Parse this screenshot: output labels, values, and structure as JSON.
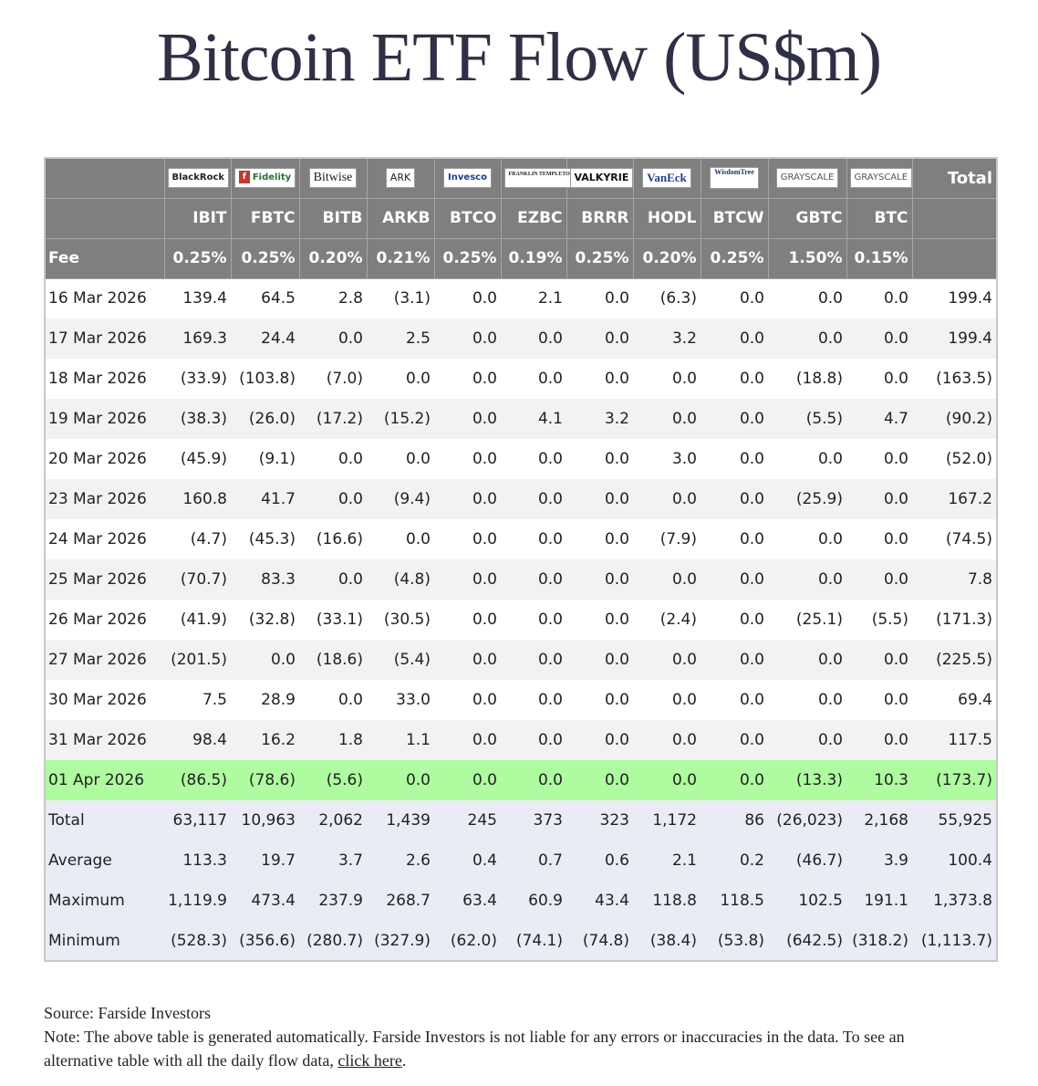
{
  "title": "Bitcoin ETF Flow (US$m)",
  "logos": [
    {
      "id": "blackrock",
      "text": "BlackRock"
    },
    {
      "id": "fidelity",
      "text": "Fidelity",
      "mark": "f"
    },
    {
      "id": "bitwise",
      "text": "Bitwise"
    },
    {
      "id": "ark",
      "text": "ARK"
    },
    {
      "id": "invesco",
      "text": "Invesco"
    },
    {
      "id": "franklin",
      "text": "FRANKLIN TEMPLETON"
    },
    {
      "id": "valkyrie",
      "text": "VALKYRIE"
    },
    {
      "id": "vaneck",
      "text": "VanEck"
    },
    {
      "id": "wisdomtree",
      "text": "WisdomTree"
    },
    {
      "id": "grayscale1",
      "text": "GRAYSCALE"
    },
    {
      "id": "grayscale2",
      "text": "GRAYSCALE"
    }
  ],
  "total_header": "Total",
  "tickers": [
    "IBIT",
    "FBTC",
    "BITB",
    "ARKB",
    "BTCO",
    "EZBC",
    "BRRR",
    "HODL",
    "BTCW",
    "GBTC",
    "BTC"
  ],
  "fee_label": "Fee",
  "fees": [
    "0.25%",
    "0.25%",
    "0.20%",
    "0.21%",
    "0.25%",
    "0.19%",
    "0.25%",
    "0.20%",
    "0.25%",
    "1.50%",
    "0.15%"
  ],
  "rows": [
    {
      "date": "16 Mar 2026",
      "values": [
        "139.4",
        "64.5",
        "2.8",
        "(3.1)",
        "0.0",
        "2.1",
        "0.0",
        "(6.3)",
        "0.0",
        "0.0",
        "0.0"
      ],
      "total": "199.4"
    },
    {
      "date": "17 Mar 2026",
      "values": [
        "169.3",
        "24.4",
        "0.0",
        "2.5",
        "0.0",
        "0.0",
        "0.0",
        "3.2",
        "0.0",
        "0.0",
        "0.0"
      ],
      "total": "199.4"
    },
    {
      "date": "18 Mar 2026",
      "values": [
        "(33.9)",
        "(103.8)",
        "(7.0)",
        "0.0",
        "0.0",
        "0.0",
        "0.0",
        "0.0",
        "0.0",
        "(18.8)",
        "0.0"
      ],
      "total": "(163.5)"
    },
    {
      "date": "19 Mar 2026",
      "values": [
        "(38.3)",
        "(26.0)",
        "(17.2)",
        "(15.2)",
        "0.0",
        "4.1",
        "3.2",
        "0.0",
        "0.0",
        "(5.5)",
        "4.7"
      ],
      "total": "(90.2)"
    },
    {
      "date": "20 Mar 2026",
      "values": [
        "(45.9)",
        "(9.1)",
        "0.0",
        "0.0",
        "0.0",
        "0.0",
        "0.0",
        "3.0",
        "0.0",
        "0.0",
        "0.0"
      ],
      "total": "(52.0)"
    },
    {
      "date": "23 Mar 2026",
      "values": [
        "160.8",
        "41.7",
        "0.0",
        "(9.4)",
        "0.0",
        "0.0",
        "0.0",
        "0.0",
        "0.0",
        "(25.9)",
        "0.0"
      ],
      "total": "167.2"
    },
    {
      "date": "24 Mar 2026",
      "values": [
        "(4.7)",
        "(45.3)",
        "(16.6)",
        "0.0",
        "0.0",
        "0.0",
        "0.0",
        "(7.9)",
        "0.0",
        "0.0",
        "0.0"
      ],
      "total": "(74.5)"
    },
    {
      "date": "25 Mar 2026",
      "values": [
        "(70.7)",
        "83.3",
        "0.0",
        "(4.8)",
        "0.0",
        "0.0",
        "0.0",
        "0.0",
        "0.0",
        "0.0",
        "0.0"
      ],
      "total": "7.8"
    },
    {
      "date": "26 Mar 2026",
      "values": [
        "(41.9)",
        "(32.8)",
        "(33.1)",
        "(30.5)",
        "0.0",
        "0.0",
        "0.0",
        "(2.4)",
        "0.0",
        "(25.1)",
        "(5.5)"
      ],
      "total": "(171.3)"
    },
    {
      "date": "27 Mar 2026",
      "values": [
        "(201.5)",
        "0.0",
        "(18.6)",
        "(5.4)",
        "0.0",
        "0.0",
        "0.0",
        "0.0",
        "0.0",
        "0.0",
        "0.0"
      ],
      "total": "(225.5)"
    },
    {
      "date": "30 Mar 2026",
      "values": [
        "7.5",
        "28.9",
        "0.0",
        "33.0",
        "0.0",
        "0.0",
        "0.0",
        "0.0",
        "0.0",
        "0.0",
        "0.0"
      ],
      "total": "69.4"
    },
    {
      "date": "31 Mar 2026",
      "values": [
        "98.4",
        "16.2",
        "1.8",
        "1.1",
        "0.0",
        "0.0",
        "0.0",
        "0.0",
        "0.0",
        "0.0",
        "0.0"
      ],
      "total": "117.5"
    },
    {
      "date": "01 Apr 2026",
      "values": [
        "(86.5)",
        "(78.6)",
        "(5.6)",
        "0.0",
        "0.0",
        "0.0",
        "0.0",
        "0.0",
        "0.0",
        "(13.3)",
        "10.3"
      ],
      "total": "(173.7)",
      "highlight": true
    }
  ],
  "stats": [
    {
      "label": "Total",
      "values": [
        "63,117",
        "10,963",
        "2,062",
        "1,439",
        "245",
        "373",
        "323",
        "1,172",
        "86",
        "(26,023)",
        "2,168"
      ],
      "total": "55,925"
    },
    {
      "label": "Average",
      "values": [
        "113.3",
        "19.7",
        "3.7",
        "2.6",
        "0.4",
        "0.7",
        "0.6",
        "2.1",
        "0.2",
        "(46.7)",
        "3.9"
      ],
      "total": "100.4"
    },
    {
      "label": "Maximum",
      "values": [
        "1,119.9",
        "473.4",
        "237.9",
        "268.7",
        "63.4",
        "60.9",
        "43.4",
        "118.8",
        "118.5",
        "102.5",
        "191.1"
      ],
      "total": "1,373.8"
    },
    {
      "label": "Minimum",
      "values": [
        "(528.3)",
        "(356.6)",
        "(280.7)",
        "(327.9)",
        "(62.0)",
        "(74.1)",
        "(74.8)",
        "(38.4)",
        "(53.8)",
        "(642.5)",
        "(318.2)"
      ],
      "total": "(1,113.7)"
    }
  ],
  "footer": {
    "source": "Source: Farside Investors",
    "note": "Note: The above table is generated automatically. Farside Investors is not liable for any errors or inaccuracies in the data. To see an alternative table with all the daily flow data,",
    "link_text": "click here",
    "end": "."
  },
  "colors": {
    "negative": "#e0392b",
    "header": "#7f7f7f",
    "highlight": "#aefba0",
    "stats": "#eaecf5"
  }
}
